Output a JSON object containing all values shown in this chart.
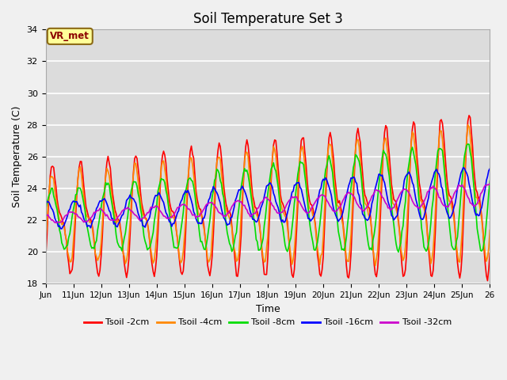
{
  "title": "Soil Temperature Set 3",
  "xlabel": "Time",
  "ylabel": "Soil Temperature (C)",
  "ylim": [
    18,
    34
  ],
  "xlim": [
    0,
    384
  ],
  "fig_facecolor": "#f0f0f0",
  "ax_facecolor": "#dcdcdc",
  "annotation_text": "VR_met",
  "annotation_box_color": "#ffff99",
  "annotation_text_color": "#8B0000",
  "annotation_border_color": "#8B6914",
  "series_colors": {
    "Tsoil -2cm": "#ff0000",
    "Tsoil -4cm": "#ff8800",
    "Tsoil -8cm": "#00dd00",
    "Tsoil -16cm": "#0000ff",
    "Tsoil -32cm": "#cc00cc"
  },
  "xtick_labels": [
    "Jun",
    "11Jun",
    "12Jun",
    "13Jun",
    "14Jun",
    "15Jun",
    "16Jun",
    "17Jun",
    "18Jun",
    "19Jun",
    "20Jun",
    "21Jun",
    "22Jun",
    "23Jun",
    "24Jun",
    "25Jun",
    "26"
  ],
  "xtick_positions": [
    0,
    24,
    48,
    72,
    96,
    120,
    144,
    168,
    192,
    216,
    240,
    264,
    288,
    312,
    336,
    360,
    384
  ],
  "ytick_positions": [
    18,
    20,
    22,
    24,
    26,
    28,
    30,
    32,
    34
  ],
  "grid_color": "#ffffff",
  "line_width": 1.2,
  "num_hours": 384,
  "figsize": [
    6.4,
    4.8
  ],
  "dpi": 100
}
